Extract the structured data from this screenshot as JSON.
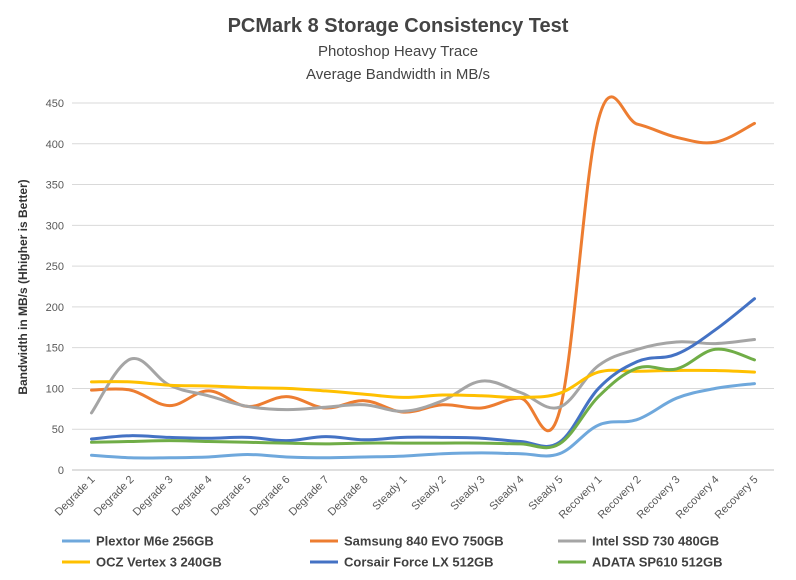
{
  "chart_data": {
    "type": "line",
    "title": "PCMark 8 Storage Consistency Test",
    "subtitle": "Photoshop Heavy Trace",
    "subtitle2": "Average Bandwidth in MB/s",
    "xlabel": "",
    "ylabel": "Bandwidth in MB/s (Hhigher is Better)",
    "ylim": [
      0,
      450
    ],
    "yticks": [
      0,
      50,
      100,
      150,
      200,
      250,
      300,
      350,
      400,
      450
    ],
    "grid": "horizontal",
    "legend_position": "bottom",
    "categories": [
      "Degrade 1",
      "Degrade 2",
      "Degrade 3",
      "Degrade 4",
      "Degrade 5",
      "Degrade 6",
      "Degrade 7",
      "Degrade 8",
      "Steady 1",
      "Steady 2",
      "Steady 3",
      "Steady 4",
      "Steady 5",
      "Recovery 1",
      "Recovery 2",
      "Recovery 3",
      "Recovery 4",
      "Recovery 5"
    ],
    "series": [
      {
        "name": "Plextor M6e 256GB",
        "color": "#6fa8dc",
        "values": [
          18,
          15,
          15,
          16,
          19,
          16,
          15,
          16,
          17,
          20,
          21,
          20,
          20,
          55,
          62,
          88,
          100,
          106
        ]
      },
      {
        "name": "Samsung 840 EVO 750GB",
        "color": "#ed7d31",
        "values": [
          98,
          98,
          79,
          97,
          78,
          90,
          76,
          85,
          71,
          80,
          76,
          88,
          72,
          430,
          424,
          408,
          402,
          425
        ]
      },
      {
        "name": "Intel SSD 730 480GB",
        "color": "#a5a5a5",
        "values": [
          70,
          136,
          104,
          91,
          78,
          74,
          77,
          80,
          72,
          85,
          109,
          95,
          77,
          128,
          148,
          157,
          155,
          160
        ]
      },
      {
        "name": "OCZ Vertex 3 240GB",
        "color": "#ffc000",
        "values": [
          108,
          108,
          104,
          103,
          101,
          100,
          97,
          93,
          89,
          92,
          91,
          89,
          94,
          120,
          121,
          122,
          122,
          120
        ]
      },
      {
        "name": "Corsair Force LX 512GB",
        "color": "#4472c4",
        "values": [
          38,
          42,
          40,
          39,
          40,
          36,
          41,
          37,
          40,
          40,
          39,
          35,
          34,
          100,
          133,
          142,
          172,
          210
        ]
      },
      {
        "name": "ADATA SP610 512GB",
        "color": "#70ad47",
        "values": [
          34,
          35,
          36,
          35,
          34,
          33,
          32,
          33,
          33,
          33,
          33,
          32,
          32,
          90,
          125,
          124,
          148,
          135
        ]
      }
    ]
  }
}
